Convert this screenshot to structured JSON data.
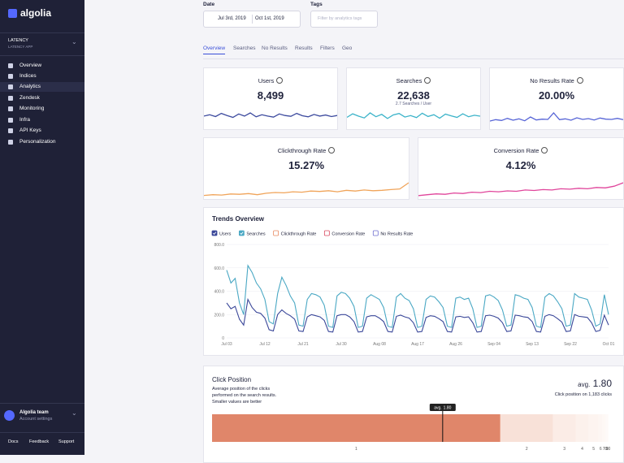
{
  "sidebar": {
    "logo": "algolia",
    "app_name": "LATENCY",
    "app_id": "LATENCY APP",
    "nav": [
      "Overview",
      "Indices",
      "Analytics",
      "Zendesk",
      "Monitoring",
      "Infra",
      "API Keys",
      "Personalization"
    ],
    "team": "Algolia team",
    "account": "Account settings",
    "footer": [
      "Docs",
      "Feedback",
      "Support"
    ]
  },
  "filters": {
    "date_label": "Date",
    "date_start": "Jul 3rd, 2019",
    "date_end": "Oct 1st, 2019",
    "tags_label": "Tags",
    "tags_placeholder": "Filter by analytics tags"
  },
  "tabs": [
    "Overview",
    "Searches",
    "No Results",
    "Results",
    "Filters",
    "Geo"
  ],
  "kpis": [
    {
      "title": "Users",
      "value": "8,499",
      "color": "#3c4a9e",
      "sparkline": [
        50,
        55,
        48,
        60,
        52,
        45,
        58,
        50,
        62,
        47,
        55,
        50,
        46,
        58,
        52,
        49,
        60,
        51,
        47,
        56,
        50,
        54,
        48,
        52
      ]
    },
    {
      "title": "Searches",
      "value": "22,638",
      "note": "2.7 Searches / User",
      "color": "#3bb3c9",
      "sparkline": [
        40,
        52,
        44,
        38,
        55,
        42,
        50,
        36,
        48,
        53,
        41,
        46,
        39,
        54,
        43,
        49,
        37,
        51,
        45,
        40,
        52,
        42,
        47,
        44
      ]
    },
    {
      "title": "No Results Rate",
      "value": "20.00%",
      "color": "#5563d6",
      "sparkline": [
        30,
        35,
        32,
        40,
        33,
        38,
        31,
        45,
        34,
        37,
        36,
        60,
        35,
        38,
        33,
        42,
        36,
        39,
        34,
        41,
        37,
        36,
        40,
        35
      ]
    },
    {
      "title": "Clickthrough Rate",
      "value": "15.27%",
      "color": "#f0a45a",
      "sparkline": [
        10,
        12,
        11,
        14,
        13,
        15,
        12,
        16,
        18,
        17,
        20,
        19,
        22,
        21,
        23,
        20,
        24,
        22,
        25,
        23,
        24,
        26,
        28,
        45
      ]
    },
    {
      "title": "Conversion Rate",
      "value": "4.12%",
      "color": "#e0459b",
      "sparkline": [
        8,
        10,
        12,
        11,
        14,
        13,
        16,
        15,
        18,
        17,
        19,
        18,
        21,
        20,
        22,
        21,
        24,
        23,
        25,
        24,
        27,
        26,
        30,
        38
      ]
    }
  ],
  "chart_data": {
    "type": "line",
    "title": "Trends Overview",
    "categories": [
      "Jul 03",
      null,
      null,
      null,
      null,
      null,
      null,
      null,
      null,
      "Jul 12",
      null,
      null,
      null,
      null,
      null,
      null,
      null,
      null,
      "Jul 21",
      null,
      null,
      null,
      null,
      null,
      null,
      null,
      null,
      "Jul 30",
      null,
      null,
      null,
      null,
      null,
      null,
      null,
      null,
      "Aug 08",
      null,
      null,
      null,
      null,
      null,
      null,
      null,
      null,
      "Aug 17",
      null,
      null,
      null,
      null,
      null,
      null,
      null,
      null,
      "Aug 26",
      null,
      null,
      null,
      null,
      null,
      null,
      null,
      null,
      "Sep 04",
      null,
      null,
      null,
      null,
      null,
      null,
      null,
      null,
      "Sep 13",
      null,
      null,
      null,
      null,
      null,
      null,
      null,
      null,
      "Sep 22",
      null,
      null,
      null,
      null,
      null,
      null,
      null,
      null,
      "Oct 01"
    ],
    "series": [
      {
        "name": "Users",
        "color": "#3a4799",
        "values": [
          300,
          250,
          270,
          160,
          110,
          330,
          260,
          220,
          210,
          170,
          70,
          60,
          200,
          240,
          210,
          190,
          160,
          60,
          55,
          180,
          200,
          190,
          180,
          150,
          55,
          50,
          190,
          200,
          200,
          180,
          140,
          50,
          55,
          180,
          190,
          190,
          170,
          140,
          55,
          50,
          185,
          195,
          180,
          170,
          130,
          50,
          55,
          175,
          190,
          185,
          165,
          140,
          55,
          50,
          180,
          185,
          175,
          180,
          130,
          50,
          55,
          190,
          195,
          185,
          170,
          130,
          55,
          60,
          195,
          190,
          180,
          175,
          140,
          55,
          50,
          185,
          200,
          190,
          165,
          135,
          55,
          60,
          200,
          185,
          180,
          175,
          130,
          55,
          65,
          195,
          110
        ]
      },
      {
        "name": "Searches",
        "color": "#4aa8c4",
        "values": [
          580,
          470,
          510,
          300,
          200,
          620,
          560,
          470,
          420,
          330,
          140,
          120,
          380,
          520,
          450,
          360,
          300,
          110,
          100,
          330,
          380,
          370,
          350,
          280,
          100,
          90,
          360,
          390,
          380,
          340,
          270,
          90,
          100,
          340,
          370,
          350,
          330,
          260,
          100,
          90,
          350,
          380,
          340,
          320,
          250,
          90,
          100,
          330,
          360,
          350,
          310,
          260,
          100,
          90,
          340,
          350,
          330,
          340,
          250,
          90,
          100,
          360,
          370,
          350,
          320,
          240,
          100,
          110,
          370,
          360,
          340,
          330,
          260,
          100,
          90,
          350,
          380,
          360,
          310,
          250,
          100,
          110,
          380,
          350,
          340,
          330,
          240,
          100,
          120,
          370,
          200
        ]
      }
    ],
    "toggles": [
      {
        "name": "Clickthrough Rate",
        "color": "#e8895f"
      },
      {
        "name": "Conversion Rate",
        "color": "#d9475e"
      },
      {
        "name": "No Results Rate",
        "color": "#6f6fd0"
      }
    ],
    "ylim": [
      0,
      800
    ],
    "yticks": [
      0,
      {
        "value": 200,
        "label": "200.0"
      },
      {
        "value": 400,
        "label": "400.0"
      },
      {
        "value": 600,
        "label": "600.0"
      },
      {
        "value": 800,
        "label": "800.0"
      }
    ],
    "grid": true
  },
  "click_position": {
    "title": "Click Position",
    "description": [
      "Average position of the clicks",
      "performed on the search results.",
      "Smaller values are better"
    ],
    "avg_label": "avg.",
    "avg": 1.8,
    "avg_value_label": "1.80",
    "clicks_note": "Click position on 1,183 clicks",
    "segments": [
      {
        "label": "1",
        "share": 72.7,
        "color": "#e0866a"
      },
      {
        "label": "2",
        "share": 13.3,
        "color": "#f8e1d8"
      },
      {
        "label": "3",
        "share": 5.7,
        "color": "#fbece6"
      },
      {
        "label": "4",
        "share": 3.3,
        "color": "#fcf1ec"
      },
      {
        "label": "5",
        "share": 2.5,
        "color": "#fdf4f0"
      },
      {
        "label": "6",
        "share": 1.0,
        "color": "#fdf6f3"
      },
      {
        "label": "7",
        "share": 0.6,
        "color": "#fef8f5"
      },
      {
        "label": "8",
        "share": 0.4,
        "color": "#fef9f7"
      },
      {
        "label": "9",
        "share": 0.3,
        "color": "#fefaf8"
      },
      {
        "label": "10",
        "share": 0.2,
        "color": "#fffbfa"
      }
    ]
  }
}
